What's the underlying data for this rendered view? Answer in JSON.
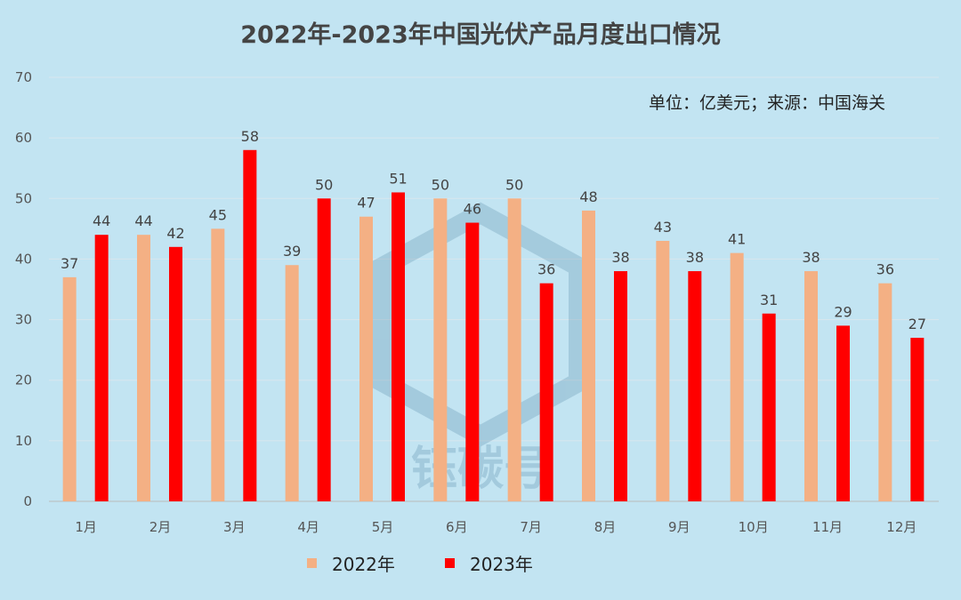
{
  "chart_data": {
    "type": "bar",
    "title": "2022年-2023年中国光伏产品月度出口情况",
    "note": "单位：亿美元；来源：中国海关",
    "watermark": "钰碳号",
    "xlabel": "",
    "ylabel": "",
    "ylim": [
      0,
      70
    ],
    "yticks": [
      0,
      10,
      20,
      30,
      40,
      50,
      60,
      70
    ],
    "grid": true,
    "legend_position": "bottom",
    "categories": [
      "1月",
      "2月",
      "3月",
      "4月",
      "5月",
      "6月",
      "7月",
      "8月",
      "9月",
      "10月",
      "11月",
      "12月"
    ],
    "series": [
      {
        "name": "2022年",
        "color": "#f4b084",
        "values": [
          37,
          44,
          45,
          39,
          47,
          50,
          50,
          48,
          43,
          41,
          38,
          36
        ]
      },
      {
        "name": "2023年",
        "color": "#ff0000",
        "values": [
          44,
          42,
          58,
          50,
          51,
          46,
          36,
          38,
          38,
          31,
          29,
          27
        ]
      }
    ]
  }
}
